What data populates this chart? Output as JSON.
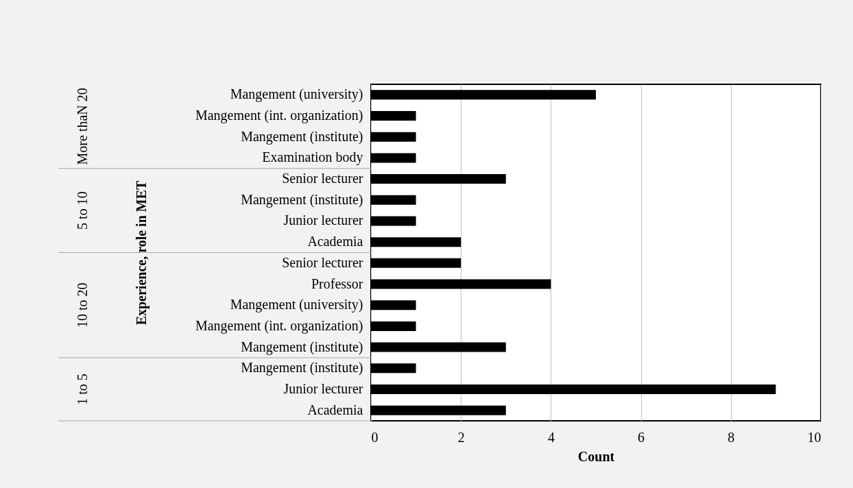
{
  "chart_data": {
    "type": "bar",
    "orientation": "horizontal",
    "categories": [
      "Mangement (university)",
      "Mangement (int. organization)",
      "Mangement (institute)",
      "Examination body",
      "Senior lecturer",
      "Mangement (institute)",
      "Junior lecturer",
      "Academia",
      "Senior lecturer",
      "Professor",
      "Mangement (university)",
      "Mangement (int. organization)",
      "Mangement (institute)",
      "Mangement (institute)",
      "Junior lecturer",
      "Academia"
    ],
    "values": [
      5,
      1,
      1,
      1,
      3,
      1,
      1,
      2,
      2,
      4,
      1,
      1,
      3,
      1,
      9,
      3
    ],
    "color": "#000000",
    "xlabel": "Count",
    "ylabel": "Experience, role in MET",
    "annotations": [
      "More thaN 20",
      "5 to 10",
      "10 to 20",
      "1 to 5"
    ],
    "xlim": [
      0,
      10
    ],
    "xticks": [
      0,
      2,
      4,
      6,
      8,
      10
    ],
    "grid": "x"
  }
}
